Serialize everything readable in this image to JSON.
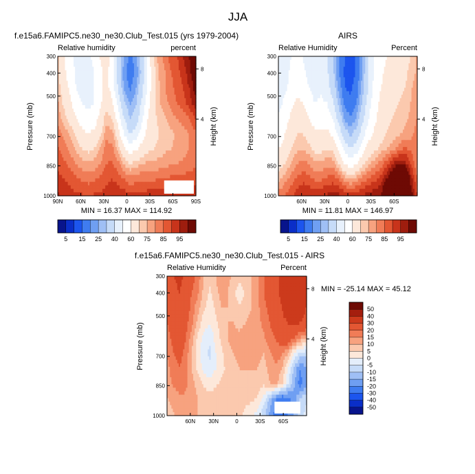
{
  "figure": {
    "title": "JJA"
  },
  "colorbars": {
    "abs": {
      "levels": [
        "5",
        "15",
        "25",
        "40",
        "60",
        "75",
        "85",
        "95"
      ],
      "colors": [
        "#08148c",
        "#0a2ec8",
        "#1c55ee",
        "#3f7cf0",
        "#6f9ff2",
        "#9fbff5",
        "#c6dbf8",
        "#e8f1fc",
        "#ffffff",
        "#fde8da",
        "#fbc9ae",
        "#f7a27f",
        "#f07c57",
        "#e35733",
        "#c8341b",
        "#9e1d0e",
        "#6e0a04"
      ]
    },
    "diff": {
      "levels": [
        "50",
        "40",
        "30",
        "20",
        "15",
        "10",
        "5",
        "0",
        "-5",
        "-10",
        "-15",
        "-20",
        "-30",
        "-40",
        "-50"
      ],
      "colors": [
        "#6e0a04",
        "#a41e0e",
        "#cc3a1c",
        "#e35733",
        "#f07c57",
        "#f7a27f",
        "#fbc9ae",
        "#fde8da",
        "#e4eefb",
        "#c6dbf8",
        "#9fbff5",
        "#6f9ff2",
        "#3f7cf0",
        "#1c55ee",
        "#0a2ec8",
        "#08148c"
      ]
    }
  },
  "chart_data": [
    {
      "type": "heatmap",
      "title": "f.e15a6.FAMIPC5.ne30_ne30.Club_Test.015 (yrs 1979-2004)",
      "left_label": "Relative humidity",
      "right_label": "percent",
      "ylabel": "Pressure (mb)",
      "y2label": "Height (km)",
      "x_ticks": [
        "90N",
        "60N",
        "30N",
        "0",
        "30S",
        "60S",
        "90S"
      ],
      "y_ticks": [
        "300",
        "400",
        "500",
        "700",
        "850",
        "1000"
      ],
      "y2_ticks": [
        "8",
        "4"
      ],
      "stats": "MIN = 16.37  MAX = 114.92",
      "missing_region": "60S-90S below 900 mb",
      "z": [
        [
          72,
          60,
          52,
          48,
          48,
          48,
          52,
          60,
          65,
          57,
          38,
          25,
          18,
          22,
          34,
          54,
          70,
          78,
          82,
          88,
          90,
          95,
          100,
          110
        ],
        [
          70,
          62,
          55,
          48,
          46,
          46,
          50,
          58,
          62,
          55,
          36,
          22,
          17,
          21,
          32,
          50,
          66,
          76,
          80,
          85,
          88,
          92,
          98,
          105
        ],
        [
          73,
          65,
          58,
          50,
          47,
          46,
          50,
          57,
          63,
          57,
          40,
          25,
          19,
          24,
          36,
          52,
          67,
          75,
          80,
          84,
          87,
          90,
          95,
          102
        ],
        [
          75,
          68,
          62,
          54,
          50,
          48,
          50,
          58,
          67,
          62,
          47,
          32,
          24,
          28,
          42,
          56,
          68,
          75,
          78,
          82,
          85,
          88,
          92,
          98
        ],
        [
          78,
          72,
          67,
          60,
          55,
          53,
          55,
          63,
          73,
          70,
          56,
          40,
          30,
          34,
          48,
          60,
          68,
          72,
          75,
          78,
          80,
          82,
          85,
          90
        ],
        [
          82,
          78,
          74,
          68,
          62,
          60,
          62,
          68,
          78,
          77,
          65,
          50,
          40,
          44,
          54,
          63,
          67,
          70,
          72,
          74,
          76,
          78,
          80,
          84
        ],
        [
          85,
          82,
          78,
          74,
          70,
          68,
          70,
          75,
          82,
          82,
          74,
          63,
          55,
          58,
          64,
          68,
          70,
          72,
          74,
          75,
          76,
          78,
          80,
          82
        ],
        [
          88,
          86,
          83,
          80,
          77,
          76,
          77,
          80,
          85,
          86,
          82,
          75,
          70,
          72,
          75,
          76,
          76,
          77,
          78,
          80,
          80,
          81,
          82,
          84
        ],
        [
          92,
          90,
          88,
          86,
          84,
          83,
          84,
          86,
          88,
          90,
          88,
          85,
          82,
          83,
          84,
          84,
          84,
          85,
          86,
          86,
          86,
          87,
          88,
          88
        ],
        [
          95,
          94,
          92,
          90,
          90,
          89,
          90,
          90,
          92,
          94,
          93,
          92,
          90,
          90,
          91,
          92,
          92,
          92,
          92,
          92,
          92,
          92,
          92,
          92
        ]
      ]
    },
    {
      "type": "heatmap",
      "title": "AIRS",
      "left_label": "Relative Humidity",
      "right_label": "Percent",
      "ylabel": "Pressure (mb)",
      "y2label": "Height (km)",
      "x_ticks": [
        "60N",
        "30N",
        "0",
        "30S",
        "60S"
      ],
      "y_ticks": [
        "300",
        "400",
        "500",
        "700",
        "850",
        "1000"
      ],
      "y2_ticks": [
        "8",
        "4"
      ],
      "stats": "MIN = 11.81  MAX = 146.97",
      "z": [
        [
          40,
          45,
          50,
          52,
          50,
          45,
          42,
          44,
          40,
          30,
          20,
          15,
          12,
          16,
          26,
          40,
          52,
          58,
          60,
          62,
          64,
          66,
          70,
          75
        ],
        [
          42,
          46,
          52,
          55,
          52,
          47,
          44,
          46,
          42,
          32,
          20,
          14,
          12,
          16,
          26,
          40,
          52,
          58,
          62,
          64,
          66,
          68,
          72,
          76
        ],
        [
          45,
          48,
          54,
          58,
          55,
          50,
          46,
          48,
          45,
          35,
          23,
          15,
          14,
          18,
          28,
          42,
          54,
          60,
          64,
          66,
          68,
          70,
          74,
          78
        ],
        [
          48,
          52,
          58,
          62,
          60,
          55,
          50,
          52,
          50,
          42,
          28,
          18,
          16,
          20,
          32,
          46,
          56,
          62,
          66,
          68,
          70,
          72,
          75,
          78
        ],
        [
          52,
          56,
          62,
          66,
          65,
          60,
          55,
          56,
          56,
          50,
          36,
          24,
          20,
          26,
          38,
          50,
          58,
          64,
          68,
          70,
          72,
          74,
          76,
          80
        ],
        [
          55,
          60,
          66,
          70,
          70,
          66,
          62,
          62,
          62,
          58,
          46,
          34,
          28,
          34,
          46,
          56,
          62,
          66,
          70,
          72,
          74,
          76,
          78,
          82
        ],
        [
          60,
          64,
          70,
          74,
          75,
          72,
          68,
          68,
          70,
          68,
          58,
          46,
          40,
          46,
          56,
          64,
          68,
          72,
          75,
          78,
          82,
          86,
          84,
          80
        ],
        [
          66,
          70,
          75,
          80,
          82,
          80,
          76,
          76,
          78,
          78,
          70,
          60,
          55,
          60,
          68,
          74,
          78,
          82,
          88,
          95,
          100,
          98,
          90,
          82
        ],
        [
          74,
          78,
          82,
          86,
          88,
          87,
          84,
          84,
          86,
          88,
          84,
          78,
          75,
          78,
          82,
          86,
          88,
          92,
          100,
          110,
          120,
          115,
          98,
          86
        ],
        [
          82,
          85,
          88,
          92,
          95,
          94,
          92,
          94,
          95,
          96,
          95,
          92,
          90,
          92,
          94,
          96,
          98,
          100,
          110,
          125,
          140,
          130,
          104,
          90
        ]
      ]
    },
    {
      "type": "heatmap",
      "title": "f.e15a6.FAMIPC5.ne30_ne30.Club_Test.015 - AIRS",
      "left_label": "Relative Humidity",
      "right_label": "Percent",
      "ylabel": "Pressure (mb)",
      "y2label": "Height (km)",
      "x_ticks": [
        "60N",
        "30N",
        "0",
        "30S",
        "60S"
      ],
      "y_ticks": [
        "300",
        "400",
        "500",
        "700",
        "850",
        "1000"
      ],
      "y2_ticks": [
        "8",
        "4"
      ],
      "stats": "MIN = -25.14  MAX =  45.12",
      "missing_region": "55S-70S below 920 mb",
      "z": [
        [
          25,
          30,
          32,
          28,
          22,
          18,
          10,
          6,
          10,
          14,
          12,
          8,
          6,
          8,
          10,
          14,
          20,
          24,
          28,
          32,
          36,
          40,
          38,
          34
        ],
        [
          24,
          28,
          30,
          26,
          20,
          16,
          8,
          4,
          8,
          12,
          10,
          6,
          2,
          6,
          10,
          14,
          20,
          24,
          28,
          32,
          36,
          38,
          36,
          32
        ],
        [
          22,
          26,
          28,
          24,
          18,
          12,
          6,
          2,
          6,
          10,
          10,
          8,
          6,
          8,
          10,
          14,
          18,
          22,
          26,
          30,
          34,
          36,
          34,
          30
        ],
        [
          20,
          24,
          26,
          22,
          16,
          8,
          2,
          0,
          4,
          8,
          10,
          10,
          8,
          10,
          12,
          14,
          16,
          20,
          24,
          28,
          30,
          32,
          30,
          28
        ],
        [
          18,
          22,
          24,
          20,
          12,
          4,
          -2,
          -4,
          2,
          6,
          10,
          12,
          12,
          14,
          14,
          14,
          14,
          18,
          20,
          24,
          26,
          20,
          14,
          10
        ],
        [
          16,
          20,
          22,
          18,
          10,
          2,
          -4,
          -6,
          0,
          4,
          8,
          10,
          12,
          12,
          12,
          12,
          10,
          14,
          18,
          16,
          10,
          0,
          -6,
          -8
        ],
        [
          14,
          18,
          20,
          16,
          10,
          4,
          -2,
          -4,
          0,
          4,
          6,
          8,
          10,
          10,
          10,
          10,
          8,
          12,
          14,
          10,
          0,
          -10,
          -20,
          -16
        ],
        [
          12,
          16,
          18,
          16,
          12,
          8,
          4,
          2,
          4,
          6,
          8,
          8,
          8,
          8,
          8,
          8,
          6,
          10,
          12,
          6,
          -4,
          -14,
          -22,
          -18
        ],
        [
          10,
          12,
          14,
          14,
          12,
          10,
          8,
          8,
          8,
          8,
          8,
          8,
          8,
          6,
          6,
          4,
          -2,
          -12,
          -20,
          -25,
          -22,
          -18,
          -10,
          -6
        ],
        [
          8,
          10,
          12,
          12,
          10,
          10,
          8,
          8,
          8,
          8,
          8,
          8,
          6,
          4,
          2,
          -2,
          -8,
          -16,
          -22,
          -24,
          -20,
          -14,
          -8,
          -4
        ]
      ]
    }
  ]
}
